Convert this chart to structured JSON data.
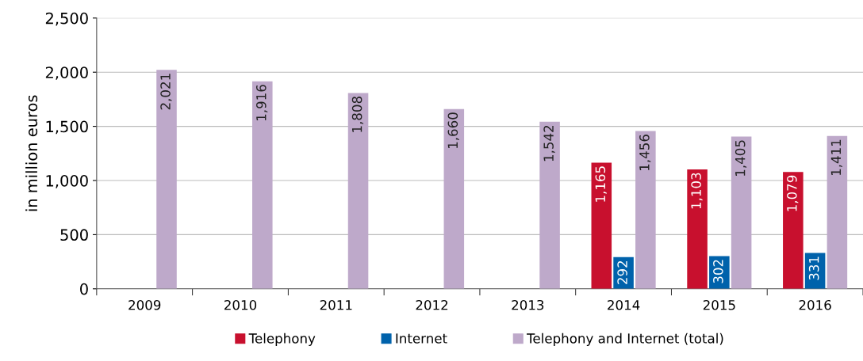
{
  "chart_data": {
    "type": "bar",
    "ylabel": "in million euros",
    "categories": [
      "2009",
      "2010",
      "2011",
      "2012",
      "2013",
      "2014",
      "2015",
      "2016"
    ],
    "series": [
      {
        "name": "Telephony",
        "color": "#c8102e",
        "values": [
          null,
          null,
          null,
          null,
          null,
          1165,
          1103,
          1079
        ],
        "value_labels": [
          null,
          null,
          null,
          null,
          null,
          "1,165",
          "1,103",
          "1,079"
        ]
      },
      {
        "name": "Internet",
        "color": "#0062ab",
        "values": [
          null,
          null,
          null,
          null,
          null,
          292,
          302,
          331
        ],
        "value_labels": [
          null,
          null,
          null,
          null,
          null,
          "292",
          "302",
          "331"
        ]
      },
      {
        "name": "Telephony and Internet (total)",
        "color": "#bea9ca",
        "values": [
          2021,
          1916,
          1808,
          1660,
          1542,
          1456,
          1405,
          1411
        ],
        "value_labels": [
          "2,021",
          "1,916",
          "1,808",
          "1,660",
          "1,542",
          "1,456",
          "1,405",
          "1,411"
        ]
      }
    ],
    "ylim": [
      0,
      2500
    ],
    "yticks": [
      {
        "value": 0,
        "label": "0"
      },
      {
        "value": 500,
        "label": "500"
      },
      {
        "value": 1000,
        "label": "1,000"
      },
      {
        "value": 1500,
        "label": "1,500"
      },
      {
        "value": 2000,
        "label": "2,000"
      },
      {
        "value": 2500,
        "label": "2,500"
      }
    ],
    "grid": "y",
    "legend": "bottom"
  }
}
